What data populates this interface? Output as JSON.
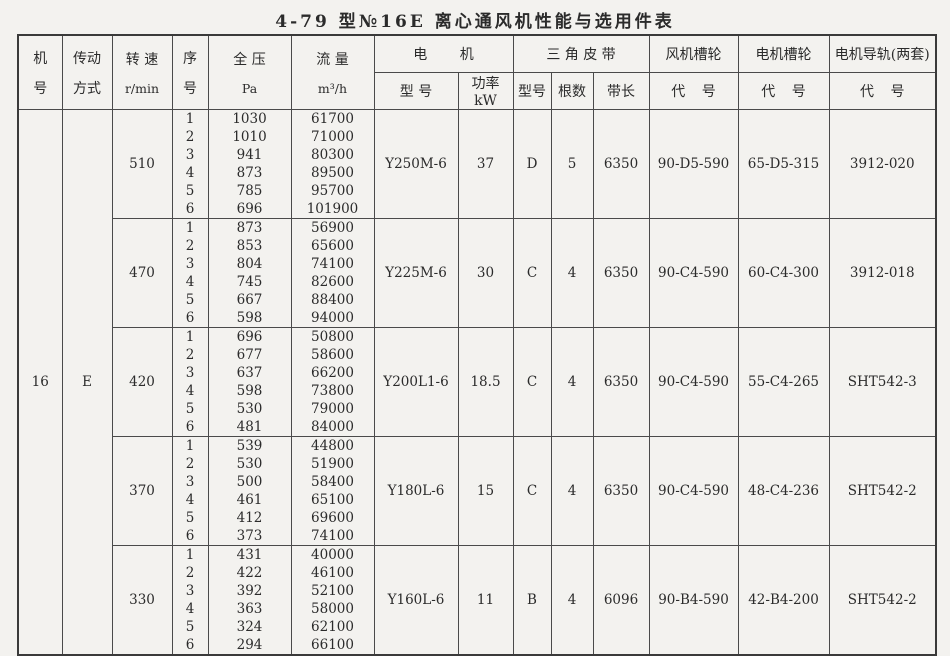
{
  "title": "4-79  型№16E 离心通风机性能与选用件表",
  "table": {
    "headers": {
      "machine_no_l1": "机",
      "machine_no_l2": "号",
      "drive_l1": "传动",
      "drive_l2": "方式",
      "speed_l1": "转 速",
      "speed_l2": "r/min",
      "seq_l1": "序",
      "seq_l2": "号",
      "pressure_l1": "全  压",
      "pressure_l2": "Pa",
      "flow_l1": "流  量",
      "flow_l2": "m³/h",
      "motor_group": "电  机",
      "motor_model": "型 号",
      "motor_power": "功率 kW",
      "belt_group": "三 角 皮 带",
      "belt_model": "型号",
      "belt_count": "根数",
      "belt_length": "带长",
      "fan_pulley_group": "风机槽轮",
      "motor_pulley_group": "电机槽轮",
      "motor_rail_group": "电机导轨(两套)",
      "code_label_1": "代  号",
      "code_label_2": "代  号",
      "code_label_3": "代  号"
    },
    "machine_no": "16",
    "drive_mode": "E",
    "groups": [
      {
        "speed": "510",
        "rows": [
          [
            "1",
            "1030",
            "61700"
          ],
          [
            "2",
            "1010",
            "71000"
          ],
          [
            "3",
            "941",
            "80300"
          ],
          [
            "4",
            "873",
            "89500"
          ],
          [
            "5",
            "785",
            "95700"
          ],
          [
            "6",
            "696",
            "101900"
          ]
        ],
        "motor_model": "Y250M-6",
        "power": "37",
        "belt_type": "D",
        "belt_count": "5",
        "belt_length": "6350",
        "fan_pulley": "90-D5-590",
        "motor_pulley": "65-D5-315",
        "motor_rail": "3912-020"
      },
      {
        "speed": "470",
        "rows": [
          [
            "1",
            "873",
            "56900"
          ],
          [
            "2",
            "853",
            "65600"
          ],
          [
            "3",
            "804",
            "74100"
          ],
          [
            "4",
            "745",
            "82600"
          ],
          [
            "5",
            "667",
            "88400"
          ],
          [
            "6",
            "598",
            "94000"
          ]
        ],
        "motor_model": "Y225M-6",
        "power": "30",
        "belt_type": "C",
        "belt_count": "4",
        "belt_length": "6350",
        "fan_pulley": "90-C4-590",
        "motor_pulley": "60-C4-300",
        "motor_rail": "3912-018"
      },
      {
        "speed": "420",
        "rows": [
          [
            "1",
            "696",
            "50800"
          ],
          [
            "2",
            "677",
            "58600"
          ],
          [
            "3",
            "637",
            "66200"
          ],
          [
            "4",
            "598",
            "73800"
          ],
          [
            "5",
            "530",
            "79000"
          ],
          [
            "6",
            "481",
            "84000"
          ]
        ],
        "motor_model": "Y200L1-6",
        "power": "18.5",
        "belt_type": "C",
        "belt_count": "4",
        "belt_length": "6350",
        "fan_pulley": "90-C4-590",
        "motor_pulley": "55-C4-265",
        "motor_rail": "SHT542-3"
      },
      {
        "speed": "370",
        "rows": [
          [
            "1",
            "539",
            "44800"
          ],
          [
            "2",
            "530",
            "51900"
          ],
          [
            "3",
            "500",
            "58400"
          ],
          [
            "4",
            "461",
            "65100"
          ],
          [
            "5",
            "412",
            "69600"
          ],
          [
            "6",
            "373",
            "74100"
          ]
        ],
        "motor_model": "Y180L-6",
        "power": "15",
        "belt_type": "C",
        "belt_count": "4",
        "belt_length": "6350",
        "fan_pulley": "90-C4-590",
        "motor_pulley": "48-C4-236",
        "motor_rail": "SHT542-2"
      },
      {
        "speed": "330",
        "rows": [
          [
            "1",
            "431",
            "40000"
          ],
          [
            "2",
            "422",
            "46100"
          ],
          [
            "3",
            "392",
            "52100"
          ],
          [
            "4",
            "363",
            "58000"
          ],
          [
            "5",
            "324",
            "62100"
          ],
          [
            "6",
            "294",
            "66100"
          ]
        ],
        "motor_model": "Y160L-6",
        "power": "11",
        "belt_type": "B",
        "belt_count": "4",
        "belt_length": "6096",
        "fan_pulley": "90-B4-590",
        "motor_pulley": "42-B4-200",
        "motor_rail": "SHT542-2"
      }
    ]
  }
}
